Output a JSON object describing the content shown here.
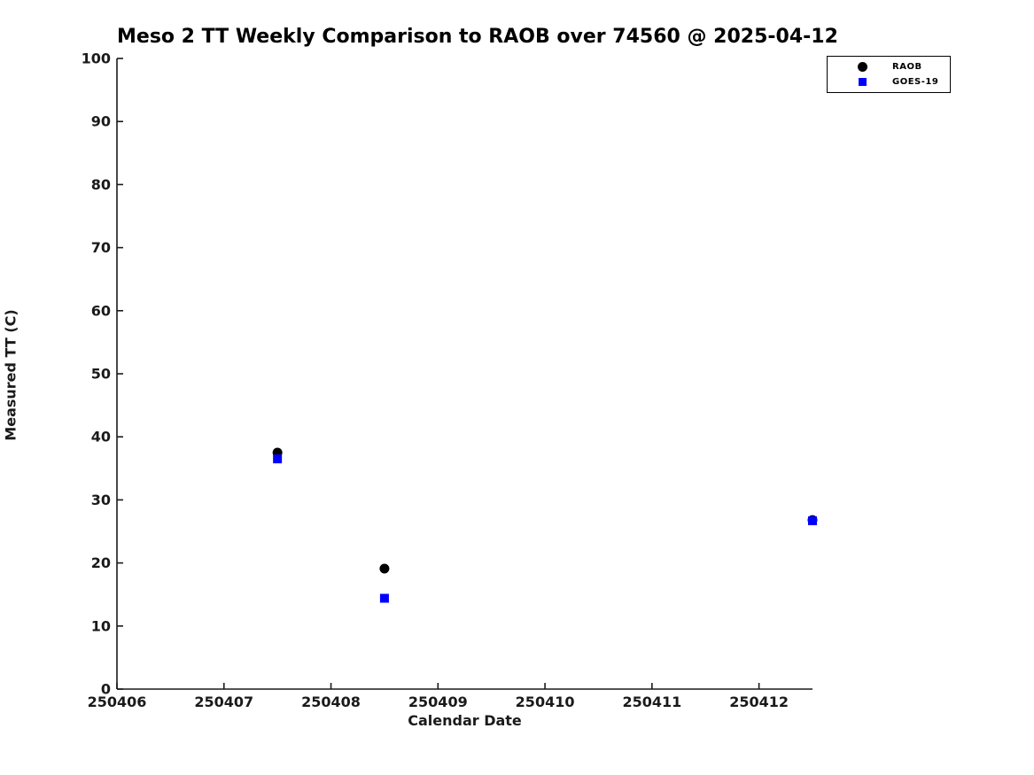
{
  "chart_data": {
    "type": "scatter",
    "title": "Meso 2 TT Weekly Comparison to RAOB over 74560 @ 2025-04-12",
    "xlabel": "Calendar Date",
    "ylabel": "Measured TT (C)",
    "xlim": [
      250406,
      250412.5
    ],
    "ylim": [
      0,
      100
    ],
    "x_ticks": [
      250406,
      250407,
      250408,
      250409,
      250410,
      250411,
      250412
    ],
    "y_ticks": [
      0,
      10,
      20,
      30,
      40,
      50,
      60,
      70,
      80,
      90,
      100
    ],
    "grid": false,
    "legend_position": "top-right",
    "axis_color": "#1a1a1a",
    "series": [
      {
        "name": "RAOB",
        "marker": "circle",
        "color": "#000000",
        "x": [
          250407.5,
          250408.5,
          250412.5
        ],
        "y": [
          37.5,
          19.1,
          26.8
        ]
      },
      {
        "name": "GOES-19",
        "marker": "square",
        "color": "#0000ff",
        "x": [
          250407.5,
          250408.5,
          250412.5
        ],
        "y": [
          36.5,
          14.4,
          26.7
        ]
      }
    ]
  }
}
